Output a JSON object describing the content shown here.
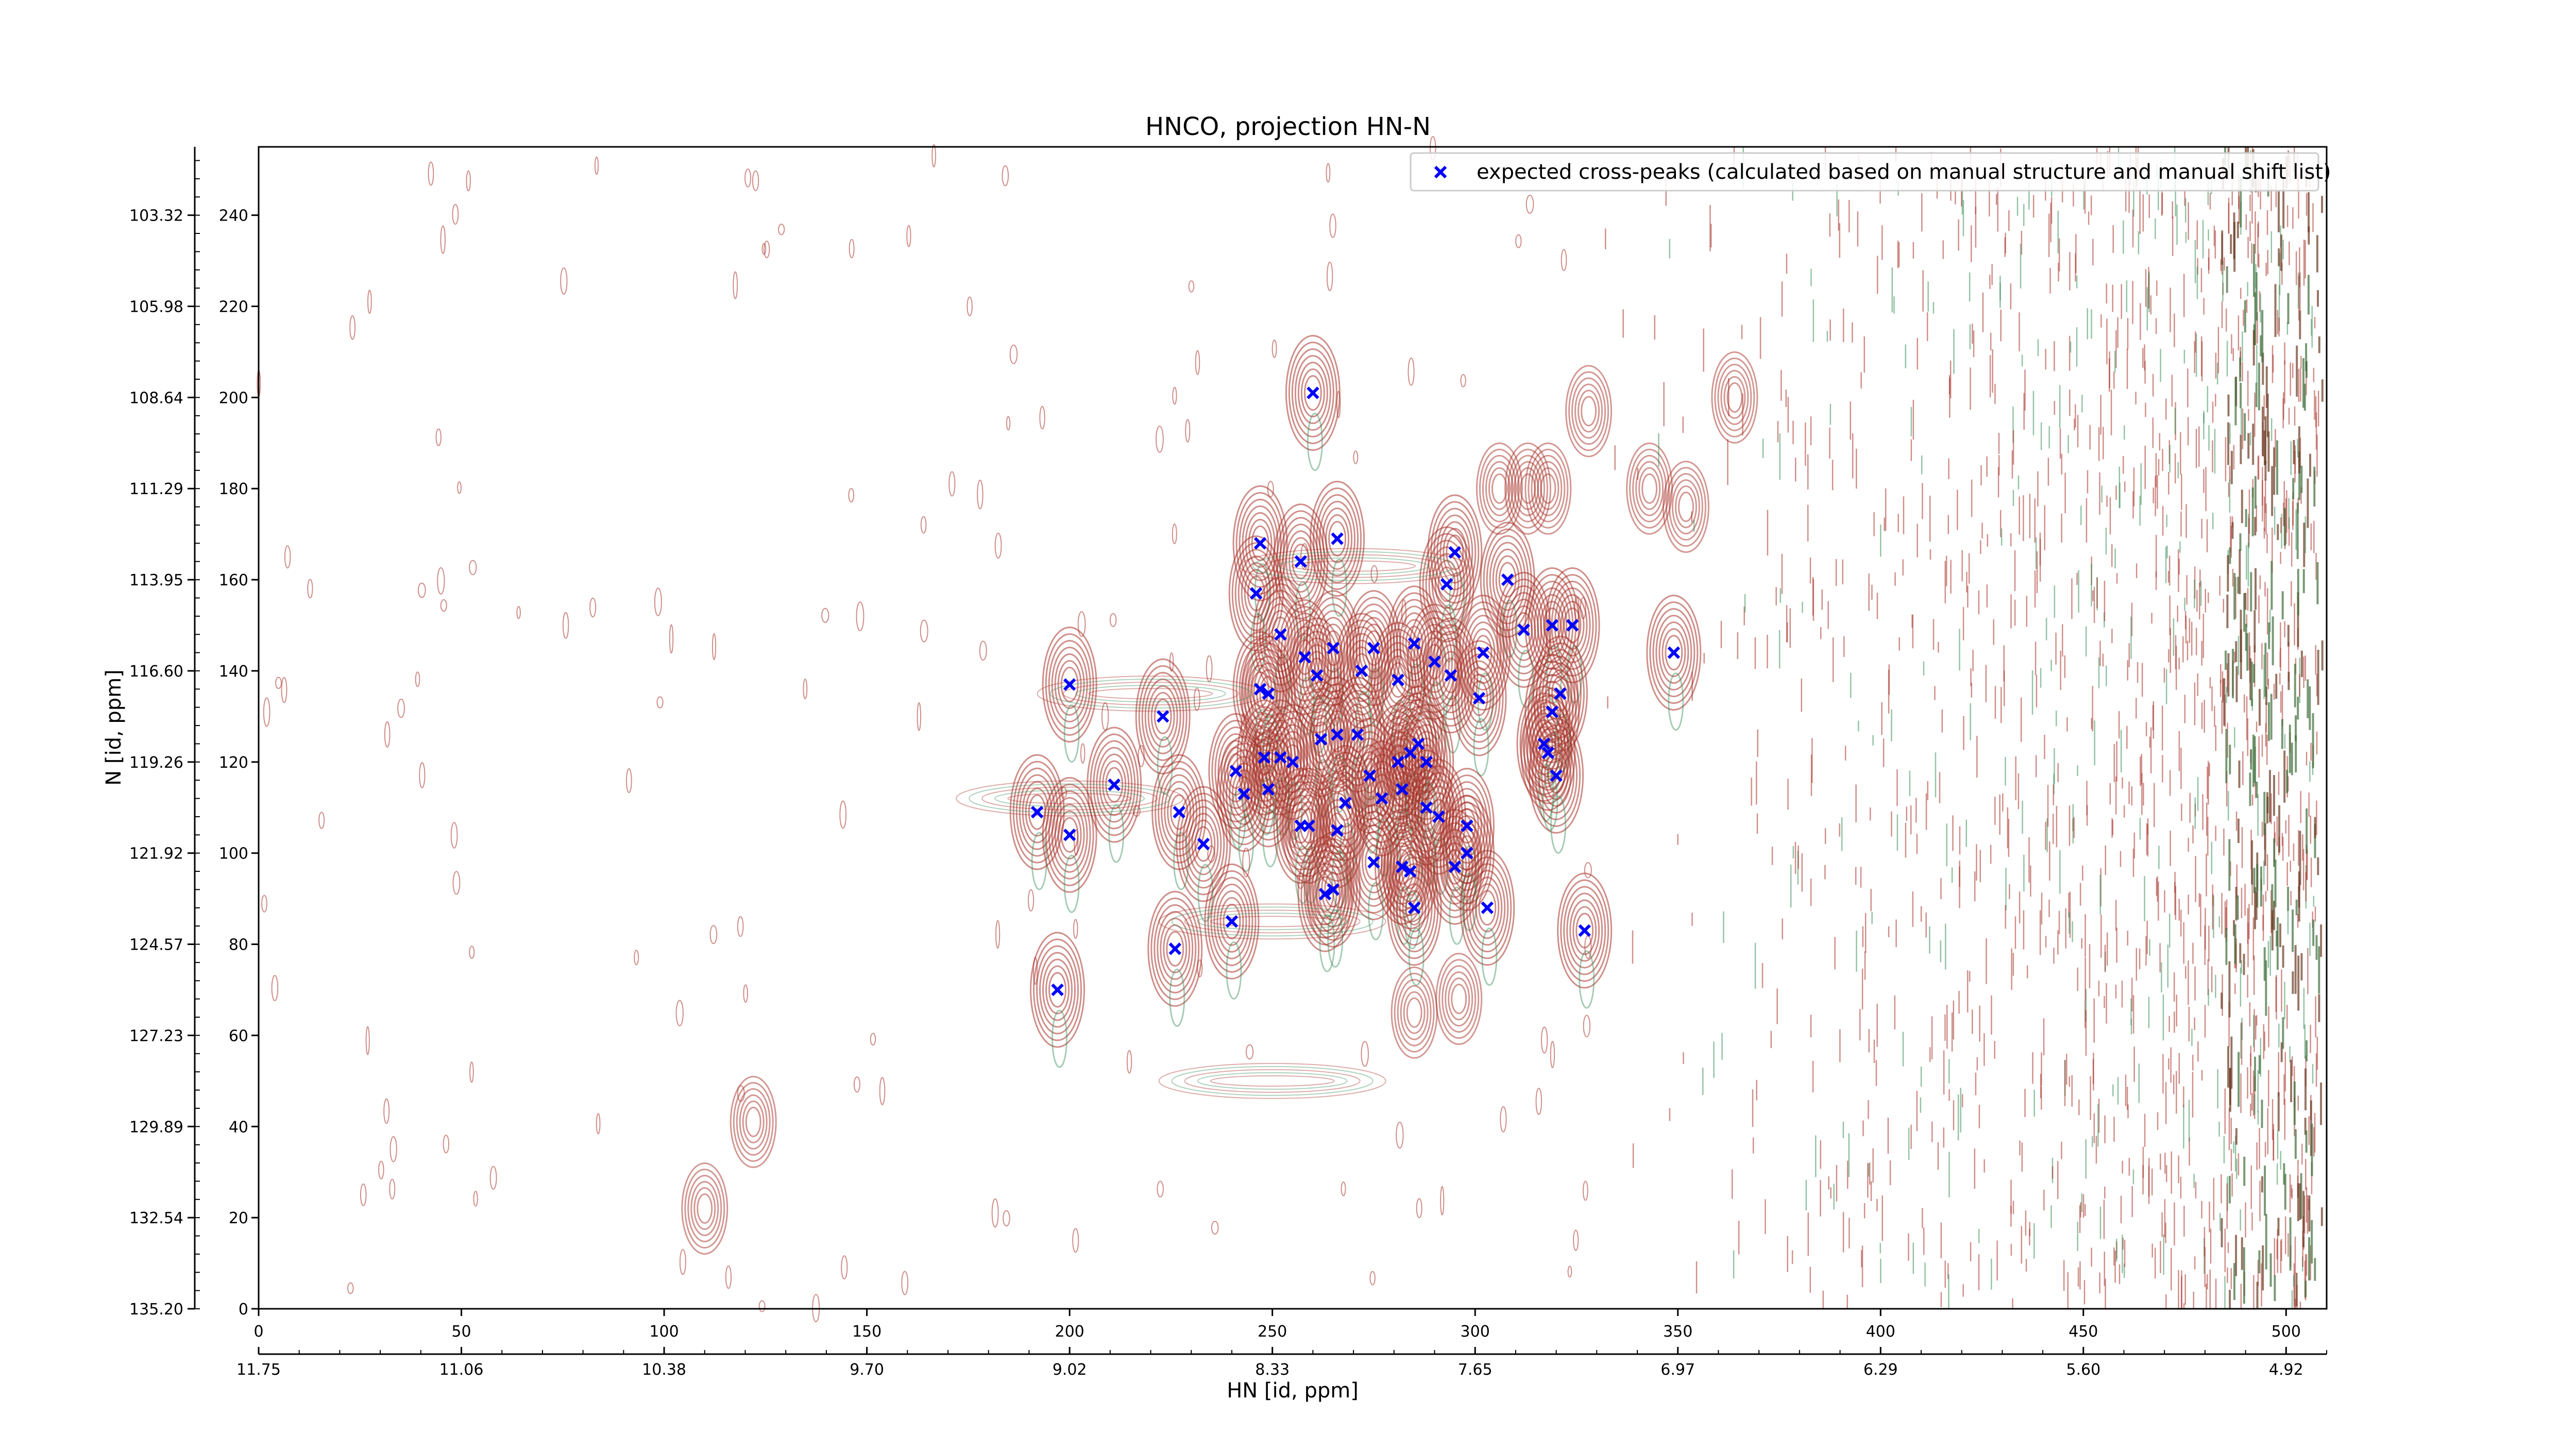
{
  "chart_data": {
    "type": "scatter",
    "title": "HNCO, projection HN-N",
    "xlabel": "HN [id, ppm]",
    "ylabel": "N [id, ppm]",
    "x_index_range": [
      0,
      510
    ],
    "y_index_range": [
      0,
      255
    ],
    "x_index_ticks": [
      "0",
      "50",
      "100",
      "150",
      "200",
      "250",
      "300",
      "350",
      "400",
      "450",
      "500"
    ],
    "x_ppm_ticks": [
      "11.75",
      "11.06",
      "10.38",
      "9.70",
      "9.02",
      "8.33",
      "7.65",
      "6.97",
      "6.29",
      "5.60",
      "4.92"
    ],
    "y_index_ticks": [
      "0",
      "20",
      "40",
      "60",
      "80",
      "100",
      "120",
      "140",
      "160",
      "180",
      "200",
      "220",
      "240"
    ],
    "y_ppm_ticks": [
      "135.20",
      "132.54",
      "129.89",
      "127.23",
      "124.57",
      "121.92",
      "119.26",
      "116.60",
      "113.95",
      "111.29",
      "108.64",
      "105.98",
      "103.32"
    ],
    "legend": {
      "position": "top-right",
      "label": "expected cross-peaks (calculated based on manual structure and manual shift list)",
      "color": "#0000ff",
      "marker": "x"
    },
    "contour_colors": {
      "positive": "#a83228",
      "negative": "#3a8f5a"
    },
    "series": [
      {
        "name": "expected cross-peaks (calculated based on manual structure and manual shift list)",
        "points": [
          [
            260,
            201
          ],
          [
            247,
            168
          ],
          [
            266,
            169
          ],
          [
            257,
            164
          ],
          [
            246,
            157
          ],
          [
            295,
            166
          ],
          [
            293,
            159
          ],
          [
            308,
            160
          ],
          [
            252,
            148
          ],
          [
            265,
            145
          ],
          [
            275,
            145
          ],
          [
            285,
            146
          ],
          [
            290,
            142
          ],
          [
            294,
            139
          ],
          [
            302,
            144
          ],
          [
            312,
            149
          ],
          [
            319,
            150
          ],
          [
            324,
            150
          ],
          [
            349,
            144
          ],
          [
            258,
            143
          ],
          [
            261,
            139
          ],
          [
            272,
            140
          ],
          [
            281,
            138
          ],
          [
            247,
            136
          ],
          [
            249,
            135
          ],
          [
            301,
            134
          ],
          [
            319,
            131
          ],
          [
            321,
            135
          ],
          [
            200,
            137
          ],
          [
            223,
            130
          ],
          [
            262,
            125
          ],
          [
            266,
            126
          ],
          [
            271,
            126
          ],
          [
            284,
            122
          ],
          [
            286,
            124
          ],
          [
            281,
            120
          ],
          [
            288,
            120
          ],
          [
            211,
            115
          ],
          [
            241,
            118
          ],
          [
            248,
            121
          ],
          [
            252,
            121
          ],
          [
            274,
            117
          ],
          [
            255,
            120
          ],
          [
            317,
            124
          ],
          [
            318,
            122
          ],
          [
            320,
            117
          ],
          [
            192,
            109
          ],
          [
            227,
            109
          ],
          [
            249,
            114
          ],
          [
            243,
            113
          ],
          [
            268,
            111
          ],
          [
            277,
            112
          ],
          [
            282,
            114
          ],
          [
            288,
            110
          ],
          [
            291,
            108
          ],
          [
            298,
            106
          ],
          [
            200,
            104
          ],
          [
            233,
            102
          ],
          [
            257,
            106
          ],
          [
            259,
            106
          ],
          [
            266,
            105
          ],
          [
            275,
            98
          ],
          [
            282,
            97
          ],
          [
            284,
            96
          ],
          [
            295,
            97
          ],
          [
            298,
            100
          ],
          [
            263,
            91
          ],
          [
            265,
            92
          ],
          [
            285,
            88
          ],
          [
            303,
            88
          ],
          [
            240,
            85
          ],
          [
            226,
            79
          ],
          [
            327,
            83
          ],
          [
            197,
            70
          ]
        ]
      }
    ]
  }
}
